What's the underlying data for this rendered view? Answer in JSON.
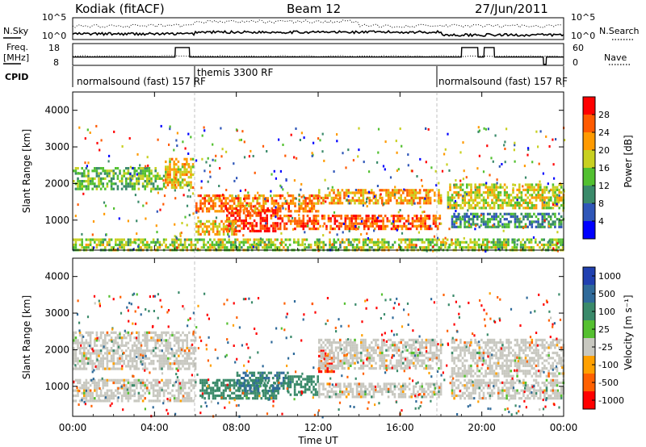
{
  "header": {
    "station": "Kodiak (fitACF)",
    "beam": "Beam 12",
    "date": "27/Jun/2011"
  },
  "left_labels": {
    "nsky": "N.Sky",
    "freq_line1": "Freq.",
    "freq_line2": "[MHz]",
    "cpid": "CPID"
  },
  "right_labels": {
    "nsearch": "N.Search",
    "nave": "Nave"
  },
  "nsky_axis": {
    "ticks": [
      "10^5",
      "10^0"
    ]
  },
  "nsearch_axis": {
    "ticks": [
      "10^5",
      "10^0"
    ]
  },
  "freq_axis": {
    "ticks": [
      "18",
      "8"
    ]
  },
  "nave_axis": {
    "ticks": [
      "60",
      "0"
    ]
  },
  "cpid_segments": [
    {
      "label": "normalsound (fast) 157 RF",
      "start_hour": 0,
      "end_hour": 6
    },
    {
      "label": "themis 3300 RF",
      "start_hour": 6,
      "end_hour": 18
    },
    {
      "label": "normalsound (fast) 157 RF",
      "start_hour": 18,
      "end_hour": 24
    }
  ],
  "panels": {
    "power": {
      "ylabel": "Slant Range [km]",
      "colorbar_label": "Power [dB]"
    },
    "velocity": {
      "ylabel": "Slant Range [km]",
      "colorbar_label": "Velocity [m s⁻¹]"
    }
  },
  "x_axis": {
    "label": "Time UT",
    "ticks": [
      "00:00",
      "04:00",
      "08:00",
      "12:00",
      "16:00",
      "20:00",
      "00:00"
    ]
  },
  "chart_data": [
    {
      "type": "heatmap",
      "name": "power",
      "x_unit": "hours UT",
      "xlim": [
        0,
        24
      ],
      "ylabel": "Slant Range [km]",
      "ylim": [
        180,
        4500
      ],
      "yticks": [
        1000,
        2000,
        3000,
        4000
      ],
      "colorbar": {
        "label": "Power [dB]",
        "ticks": [
          4,
          8,
          12,
          16,
          20,
          24,
          28
        ],
        "colors": [
          "#0000ff",
          "#2f56b8",
          "#3a8a6a",
          "#52c030",
          "#c8d020",
          "#ff9a00",
          "#ff5a00",
          "#ff0000"
        ]
      },
      "features": [
        {
          "x": [
            0.0,
            4.5
          ],
          "y": [
            1850,
            2450
          ],
          "value": 14
        },
        {
          "x": [
            4.5,
            5.9
          ],
          "y": [
            1900,
            2700
          ],
          "value": 20
        },
        {
          "x": [
            6.0,
            12.0
          ],
          "y": [
            1250,
            1700
          ],
          "value": 24
        },
        {
          "x": [
            12.0,
            18.0
          ],
          "y": [
            1450,
            1850
          ],
          "value": 22
        },
        {
          "x": [
            7.5,
            10.0
          ],
          "y": [
            700,
            1300
          ],
          "value": 28
        },
        {
          "x": [
            10.0,
            18.0
          ],
          "y": [
            750,
            1150
          ],
          "value": 26
        },
        {
          "x": [
            6.0,
            8.0
          ],
          "y": [
            600,
            1000
          ],
          "value": 20
        },
        {
          "x": [
            18.3,
            24.0
          ],
          "y": [
            1350,
            2000
          ],
          "value": 18
        },
        {
          "x": [
            18.5,
            24.0
          ],
          "y": [
            800,
            1200
          ],
          "value": 10
        },
        {
          "x": [
            0.0,
            24.0
          ],
          "y": [
            200,
            500
          ],
          "value": 16
        }
      ]
    },
    {
      "type": "heatmap",
      "name": "velocity",
      "x_unit": "hours UT",
      "xlim": [
        0,
        24
      ],
      "ylabel": "Slant Range [km]",
      "ylim": [
        180,
        4500
      ],
      "yticks": [
        1000,
        2000,
        3000,
        4000
      ],
      "colorbar": {
        "label": "Velocity [m s⁻¹]",
        "ticks": [
          1000,
          500,
          100,
          25,
          -25,
          -100,
          -500,
          -1000
        ],
        "colors": [
          "#2040b0",
          "#2f6a9a",
          "#3a8a6a",
          "#55c030",
          "#c8c8c0",
          "#ffa000",
          "#ff6000",
          "#ff0000"
        ]
      },
      "features": [
        {
          "x": [
            0.0,
            6.0
          ],
          "y": [
            1500,
            2500
          ],
          "value": 0
        },
        {
          "x": [
            0.0,
            6.0
          ],
          "y": [
            600,
            1200
          ],
          "value": 0
        },
        {
          "x": [
            6.2,
            10.0
          ],
          "y": [
            700,
            1200
          ],
          "value": 300
        },
        {
          "x": [
            8.0,
            10.5
          ],
          "y": [
            850,
            1400
          ],
          "value": 500
        },
        {
          "x": [
            10.5,
            12.0
          ],
          "y": [
            800,
            1300
          ],
          "value": 150
        },
        {
          "x": [
            12.0,
            12.8
          ],
          "y": [
            1400,
            2000
          ],
          "value": -500
        },
        {
          "x": [
            12.0,
            18.0
          ],
          "y": [
            1500,
            2300
          ],
          "value": 0
        },
        {
          "x": [
            12.0,
            18.0
          ],
          "y": [
            700,
            1100
          ],
          "value": 0
        },
        {
          "x": [
            18.5,
            24.0
          ],
          "y": [
            1300,
            2300
          ],
          "value": 0
        },
        {
          "x": [
            18.5,
            24.0
          ],
          "y": [
            700,
            1200
          ],
          "value": 0
        }
      ]
    }
  ]
}
